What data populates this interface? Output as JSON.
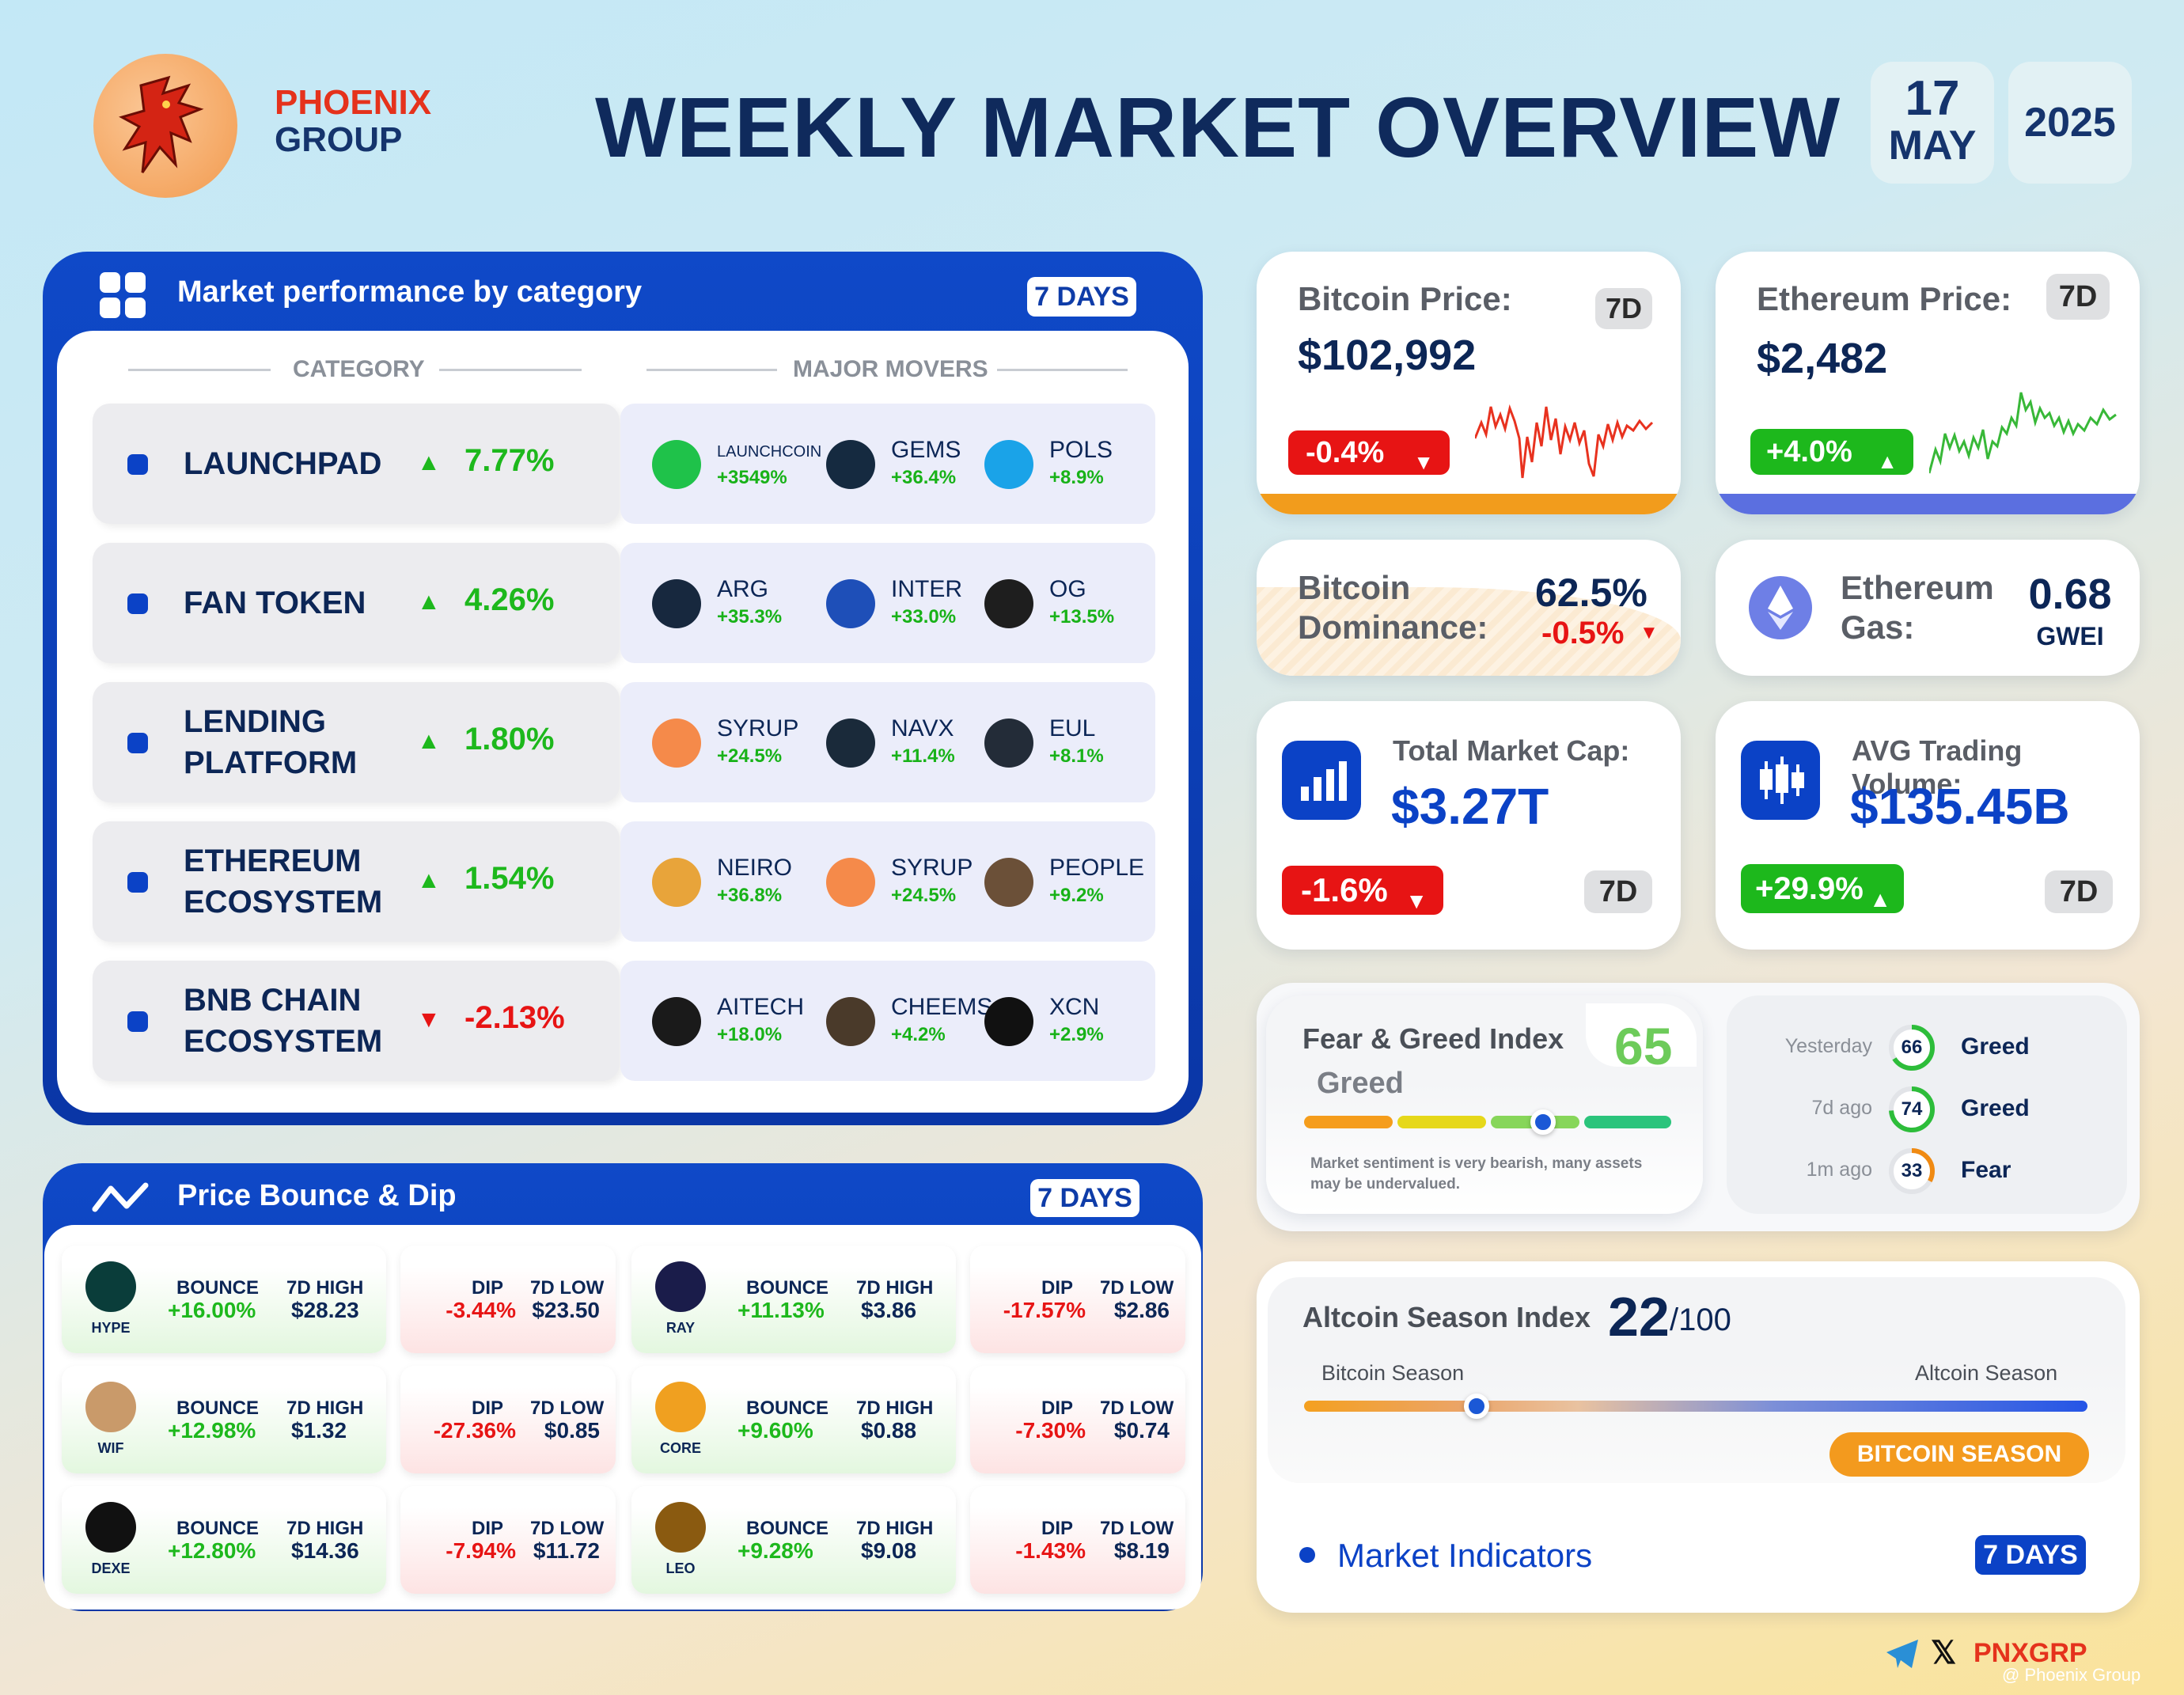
{
  "brand": {
    "name_top": "PHOENIX",
    "name_bottom": "GROUP"
  },
  "title": "WEEKLY MARKET OVERVIEW",
  "date": {
    "day": "17",
    "month": "MAY",
    "year": "2025"
  },
  "category_panel": {
    "title": "Market performance by category",
    "badge": "7 DAYS",
    "col_category": "CATEGORY",
    "col_movers": "MAJOR MOVERS",
    "rows": [
      {
        "name": [
          "LAUNCHPAD"
        ],
        "change": "7.77%",
        "dir": "up",
        "movers": [
          {
            "name": "LAUNCHCOIN",
            "change": "+3549%"
          },
          {
            "name": "GEMS",
            "change": "+36.4%"
          },
          {
            "name": "POLS",
            "change": "+8.9%"
          }
        ]
      },
      {
        "name": [
          "FAN TOKEN"
        ],
        "change": "4.26%",
        "dir": "up",
        "movers": [
          {
            "name": "ARG",
            "change": "+35.3%"
          },
          {
            "name": "INTER",
            "change": "+33.0%"
          },
          {
            "name": "OG",
            "change": "+13.5%"
          }
        ]
      },
      {
        "name": [
          "LENDING",
          "PLATFORM"
        ],
        "change": "1.80%",
        "dir": "up",
        "movers": [
          {
            "name": "SYRUP",
            "change": "+24.5%"
          },
          {
            "name": "NAVX",
            "change": "+11.4%"
          },
          {
            "name": "EUL",
            "change": "+8.1%"
          }
        ]
      },
      {
        "name": [
          "ETHEREUM",
          "ECOSYSTEM"
        ],
        "change": "1.54%",
        "dir": "up",
        "movers": [
          {
            "name": "NEIRO",
            "change": "+36.8%"
          },
          {
            "name": "SYRUP",
            "change": "+24.5%"
          },
          {
            "name": "PEOPLE",
            "change": "+9.2%"
          }
        ]
      },
      {
        "name": [
          "BNB CHAIN",
          "ECOSYSTEM"
        ],
        "change": "-2.13%",
        "dir": "down",
        "movers": [
          {
            "name": "AITECH",
            "change": "+18.0%"
          },
          {
            "name": "CHEEMS",
            "change": "+4.2%"
          },
          {
            "name": "XCN",
            "change": "+2.9%"
          }
        ]
      }
    ]
  },
  "bounce_panel": {
    "title": "Price Bounce & Dip",
    "badge": "7 DAYS",
    "bounce_label": "BOUNCE",
    "high_label": "7D HIGH",
    "dip_label": "DIP",
    "low_label": "7D LOW",
    "rows": [
      [
        {
          "token": "HYPE",
          "bounce": "+16.00%",
          "high": "$28.23",
          "dip": "-3.44%",
          "low": "$23.50"
        },
        {
          "token": "RAY",
          "bounce": "+11.13%",
          "high": "$3.86",
          "dip": "-17.57%",
          "low": "$2.86"
        }
      ],
      [
        {
          "token": "WIF",
          "bounce": "+12.98%",
          "high": "$1.32",
          "dip": "-27.36%",
          "low": "$0.85"
        },
        {
          "token": "CORE",
          "bounce": "+9.60%",
          "high": "$0.88",
          "dip": "-7.30%",
          "low": "$0.74"
        }
      ],
      [
        {
          "token": "DEXE",
          "bounce": "+12.80%",
          "high": "$14.36",
          "dip": "-7.94%",
          "low": "$11.72"
        },
        {
          "token": "LEO",
          "bounce": "+9.28%",
          "high": "$9.08",
          "dip": "-1.43%",
          "low": "$8.19"
        }
      ]
    ]
  },
  "btc_price": {
    "label": "Bitcoin Price:",
    "period": "7D",
    "value": "$102,992",
    "change": "-0.4%",
    "dir": "down"
  },
  "eth_price": {
    "label": "Ethereum Price:",
    "period": "7D",
    "value": "$2,482",
    "change": "+4.0%",
    "dir": "up"
  },
  "btc_dominance": {
    "label1": "Bitcoin",
    "label2": "Dominance:",
    "value": "62.5%",
    "change": "-0.5%"
  },
  "eth_gas": {
    "label1": "Ethereum",
    "label2": "Gas:",
    "value": "0.68",
    "unit": "GWEI"
  },
  "market_cap": {
    "label": "Total Market Cap:",
    "value": "$3.27T",
    "change": "-1.6%",
    "period": "7D"
  },
  "volume": {
    "label": "AVG Trading Volume:",
    "value": "$135.45B",
    "change": "+29.9%",
    "period": "7D"
  },
  "fear_greed": {
    "title": "Fear & Greed Index",
    "value": "65",
    "state": "Greed",
    "level": 0.65,
    "note": [
      "Market sentiment is very bearish, many assets",
      "may be undervalued."
    ],
    "history": [
      {
        "when": "Yesterday",
        "value": "66",
        "state": "Greed",
        "color": "#2dbd3a"
      },
      {
        "when": "7d ago",
        "value": "74",
        "state": "Greed",
        "color": "#2dbd3a"
      },
      {
        "when": "1m ago",
        "value": "33",
        "state": "Fear",
        "color": "#f08a12"
      }
    ]
  },
  "altcoin_season": {
    "title": "Altcoin Season Index",
    "value": "22",
    "max": "/100",
    "left_label": "Bitcoin Season",
    "right_label": "Altcoin Season",
    "status": "BITCOIN SEASON",
    "level": 0.22
  },
  "indicators": {
    "label": "Market Indicators",
    "badge": "7 DAYS"
  },
  "footer": {
    "handle": "PNXGRP",
    "watermark": "@ Phoenix Group"
  },
  "colors": {
    "navy": "#0f2a5c",
    "blue": "#0b42c6",
    "green": "#1db81c",
    "red": "#e71414",
    "orange": "#f39a1e"
  }
}
